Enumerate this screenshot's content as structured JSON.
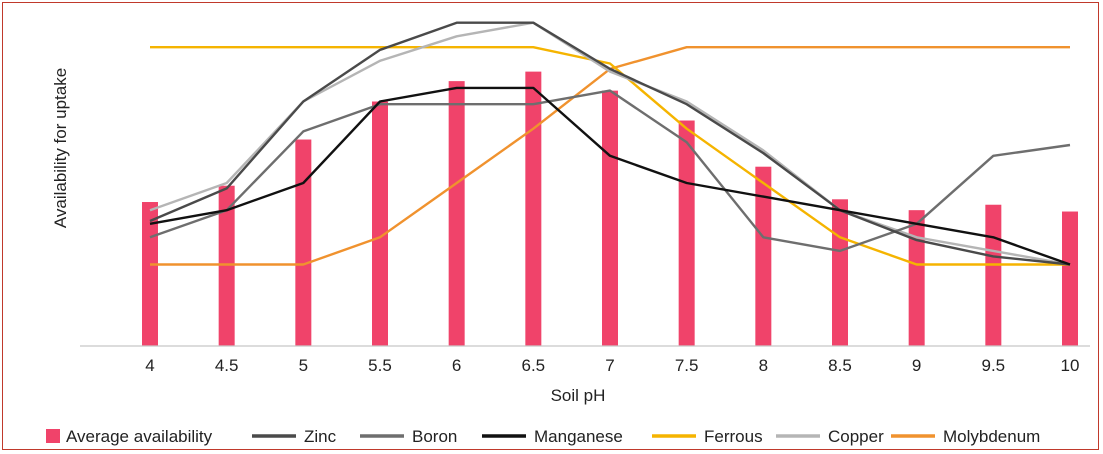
{
  "chart_data": {
    "type": "bar+line",
    "title": "",
    "xlabel": "Soil pH",
    "ylabel": "Availability for uptake",
    "x": [
      "4",
      "4.5",
      "5",
      "5.5",
      "6",
      "6.5",
      "7",
      "7.5",
      "8",
      "8.5",
      "9",
      "9.5",
      "10"
    ],
    "ylim": [
      0,
      12
    ],
    "grid": false,
    "legend_position": "bottom",
    "series": [
      {
        "name": "Average availability",
        "kind": "bar",
        "color": "#f0436a",
        "values": [
          5.3,
          5.9,
          7.6,
          9.0,
          9.75,
          10.1,
          9.4,
          8.3,
          6.6,
          5.4,
          5.0,
          5.2,
          4.95
        ]
      },
      {
        "name": "Zinc",
        "kind": "line",
        "color": "#4a4a4a",
        "values": [
          4.6,
          5.8,
          9.0,
          10.9,
          11.9,
          11.9,
          10.2,
          8.9,
          7.1,
          5.0,
          3.9,
          3.3,
          3.0
        ]
      },
      {
        "name": "Boron",
        "kind": "line",
        "color": "#6e6e6e",
        "values": [
          4.0,
          5.0,
          7.9,
          8.9,
          8.9,
          8.9,
          9.4,
          7.5,
          4.0,
          3.5,
          4.5,
          7.0,
          7.4
        ]
      },
      {
        "name": "Manganese",
        "kind": "line",
        "color": "#111111",
        "values": [
          4.5,
          5.0,
          6.0,
          9.0,
          9.5,
          9.5,
          7.0,
          6.0,
          5.5,
          5.0,
          4.5,
          4.0,
          3.0
        ]
      },
      {
        "name": "Ferrous",
        "kind": "line",
        "color": "#f5b400",
        "values": [
          11.0,
          11.0,
          11.0,
          11.0,
          11.0,
          11.0,
          10.4,
          8.0,
          6.0,
          4.0,
          3.0,
          3.0,
          3.0
        ]
      },
      {
        "name": "Copper",
        "kind": "line",
        "color": "#b5b5b5",
        "values": [
          5.0,
          6.0,
          9.0,
          10.5,
          11.4,
          11.9,
          10.1,
          9.0,
          7.2,
          5.0,
          4.0,
          3.5,
          3.0
        ]
      },
      {
        "name": "Molybdenum",
        "kind": "line",
        "color": "#f0922e",
        "values": [
          3.0,
          3.0,
          3.0,
          4.0,
          6.0,
          8.0,
          10.2,
          11.0,
          11.0,
          11.0,
          11.0,
          11.0,
          11.0
        ]
      }
    ]
  }
}
